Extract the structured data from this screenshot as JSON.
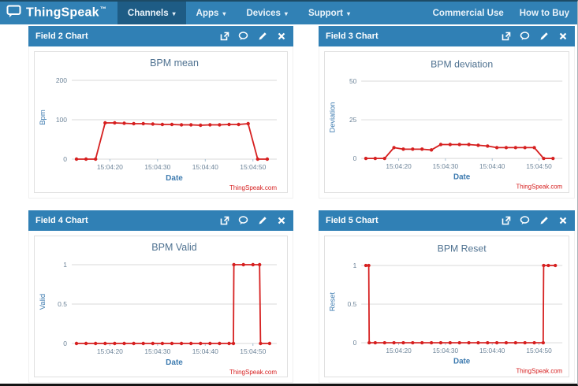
{
  "nav": {
    "brand": "ThingSpeak",
    "brand_tm": "™",
    "caret": "▾",
    "items": [
      {
        "label": "Channels",
        "active": true
      },
      {
        "label": "Apps",
        "active": false
      },
      {
        "label": "Devices",
        "active": false
      },
      {
        "label": "Support",
        "active": false
      }
    ],
    "right_items": [
      {
        "label": "Commercial Use"
      },
      {
        "label": "How to Buy"
      }
    ]
  },
  "panel_headers": [
    "Field 2 Chart",
    "Field 3 Chart",
    "Field 4 Chart",
    "Field 5 Chart"
  ],
  "colors": {
    "nav_bg": "#3181b5",
    "nav_active": "#1e5c85",
    "header_bg": "#3080b5",
    "line": "#d62020",
    "grid": "#d9d9d9",
    "tick_text": "#6d8499",
    "axis_label": "#3f7cb0",
    "title_text": "#4e7190",
    "watermark": "#d62020"
  },
  "chart_data": [
    {
      "type": "line",
      "title": "BPM mean",
      "xlabel": "Date",
      "ylabel": "Bpm",
      "watermark": "ThingSpeak.com",
      "ylim": [
        0,
        200
      ],
      "yticks": [
        {
          "v": 0,
          "label": "0"
        },
        {
          "v": 100,
          "label": "100"
        },
        {
          "v": 200,
          "label": "200"
        }
      ],
      "xdomain": [
        12,
        55
      ],
      "xticks": [
        {
          "v": 20,
          "label": "15:04:20"
        },
        {
          "v": 30,
          "label": "15:04:30"
        },
        {
          "v": 40,
          "label": "15:04:40"
        },
        {
          "v": 50,
          "label": "15:04:50"
        }
      ],
      "x": [
        13,
        15,
        17,
        19,
        21,
        23,
        25,
        27,
        29,
        31,
        33,
        35,
        37,
        39,
        41,
        43,
        45,
        47,
        49,
        51,
        53
      ],
      "y": [
        0,
        0,
        0,
        92,
        92,
        91,
        90,
        90,
        89,
        88,
        88,
        87,
        87,
        86,
        87,
        87,
        88,
        88,
        90,
        0,
        0
      ]
    },
    {
      "type": "line",
      "title": "BPM deviation",
      "xlabel": "Date",
      "ylabel": "Deviation",
      "watermark": "ThingSpeak.com",
      "ylim": [
        0,
        50
      ],
      "yticks": [
        {
          "v": 0,
          "label": "0"
        },
        {
          "v": 25,
          "label": "25"
        },
        {
          "v": 50,
          "label": "50"
        }
      ],
      "xdomain": [
        12,
        55
      ],
      "xticks": [
        {
          "v": 20,
          "label": "15:04:20"
        },
        {
          "v": 30,
          "label": "15:04:30"
        },
        {
          "v": 40,
          "label": "15:04:40"
        },
        {
          "v": 50,
          "label": "15:04:50"
        }
      ],
      "x": [
        13,
        15,
        17,
        19,
        21,
        23,
        25,
        27,
        29,
        31,
        33,
        35,
        37,
        39,
        41,
        43,
        45,
        47,
        49,
        51,
        53
      ],
      "y": [
        0,
        0,
        0,
        7,
        6,
        6,
        6,
        5.5,
        9,
        9,
        9,
        9,
        8.5,
        8,
        7,
        7,
        7,
        7,
        7,
        0,
        0
      ]
    },
    {
      "type": "line",
      "title": "BPM Valid",
      "xlabel": "Date",
      "ylabel": "Valid",
      "watermark": "ThingSpeak.com",
      "ylim": [
        0,
        1
      ],
      "yticks": [
        {
          "v": 0,
          "label": "0"
        },
        {
          "v": 0.5,
          "label": "0.5"
        },
        {
          "v": 1,
          "label": "1"
        }
      ],
      "xdomain": [
        12,
        55
      ],
      "xticks": [
        {
          "v": 20,
          "label": "15:04:20"
        },
        {
          "v": 30,
          "label": "15:04:30"
        },
        {
          "v": 40,
          "label": "15:04:40"
        },
        {
          "v": 50,
          "label": "15:04:50"
        }
      ],
      "x": [
        13,
        15,
        17,
        19,
        21,
        23,
        25,
        27,
        29,
        31,
        33,
        35,
        37,
        39,
        41,
        43,
        45,
        45.9,
        46,
        48,
        50,
        51.4,
        51.6,
        53.5
      ],
      "y": [
        0,
        0,
        0,
        0,
        0,
        0,
        0,
        0,
        0,
        0,
        0,
        0,
        0,
        0,
        0,
        0,
        0,
        0,
        1,
        1,
        1,
        1,
        0,
        0
      ]
    },
    {
      "type": "line",
      "title": "BPM Reset",
      "xlabel": "Date",
      "ylabel": "Reset",
      "watermark": "ThingSpeak.com",
      "ylim": [
        0,
        1
      ],
      "yticks": [
        {
          "v": 0,
          "label": "0"
        },
        {
          "v": 0.5,
          "label": "0.5"
        },
        {
          "v": 1,
          "label": "1"
        }
      ],
      "xdomain": [
        12,
        55
      ],
      "xticks": [
        {
          "v": 20,
          "label": "15:04:20"
        },
        {
          "v": 30,
          "label": "15:04:30"
        },
        {
          "v": 40,
          "label": "15:04:40"
        },
        {
          "v": 50,
          "label": "15:04:50"
        }
      ],
      "x": [
        13,
        13.6,
        13.7,
        15,
        17,
        19,
        21,
        23,
        25,
        27,
        29,
        31,
        33,
        35,
        37,
        39,
        41,
        43,
        45,
        47,
        49,
        50.9,
        51,
        52,
        53.5
      ],
      "y": [
        1,
        1,
        0,
        0,
        0,
        0,
        0,
        0,
        0,
        0,
        0,
        0,
        0,
        0,
        0,
        0,
        0,
        0,
        0,
        0,
        0,
        0,
        1,
        1,
        1
      ]
    }
  ]
}
